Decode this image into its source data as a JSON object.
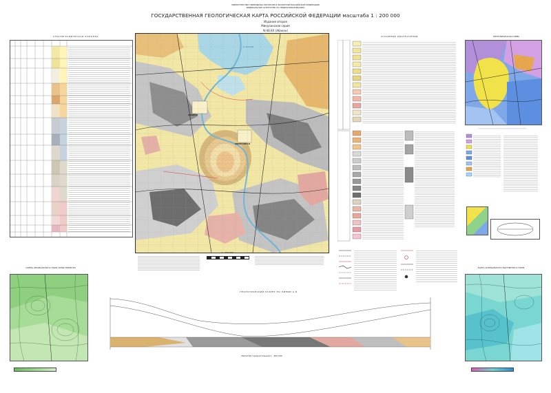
{
  "header": {
    "ministry_line1": "МИНИСТЕРСТВО ПРИРОДНЫХ РЕСУРСОВ И ЭКОЛОГИИ РОССИЙСКОЙ ФЕДЕРАЦИИ",
    "ministry_line2": "ФЕДЕРАЛЬНОЕ АГЕНТСТВО ПО НЕДРОПОЛЬЗОВАНИЮ",
    "title": "ГОСУДАРСТВЕННАЯ ГЕОЛОГИЧЕСКАЯ КАРТА РОССИЙСКОЙ ФЕДЕРАЦИИ масштаба 1 : 200 000",
    "edition": "Издание второе",
    "series": "Минусинская серия",
    "sheet": "N-46-XX (Абакан)"
  },
  "panels": {
    "strat_column": "СТРАТИГРАФИЧЕСКАЯ КОЛОНКА",
    "legend": "УСЛОВНЫЕ ОБОЗНАЧЕНИЯ",
    "tectonic_scheme": "ТЕКТОНИЧЕСКАЯ СХЕМА",
    "anomal_gravity": "СХЕМА АНОМАЛЬНОГО ПОЛЯ СИЛЫ ТЯЖЕСТИ",
    "section_title": "ГЕОЛОГИЧЕСКИЙ РАЗРЕЗ ПО ЛИНИИ А-Б",
    "magnetic_map": "КАРТА АНОМАЛЬНОГО МАГНИТНОГО ПОЛЯ",
    "section_scale": "Масштаб горизонтальный 1 : 200 000",
    "map_scale": "1 : 200 000"
  },
  "map_labels": {
    "city1": "АБАКАН",
    "city2": "МИНУСИНСК",
    "river": "р. Енисей"
  },
  "colors": {
    "quaternary": "#f3e9a6",
    "devonian": "#c8c8c8",
    "carboniferous": "#8a8a8a",
    "intrusive": "#e3a9a0",
    "jurassic": "#a9d7e6",
    "permian": "#e6b86d",
    "gravity": "#9ad78e",
    "magnetic": "#6fd3d3"
  }
}
